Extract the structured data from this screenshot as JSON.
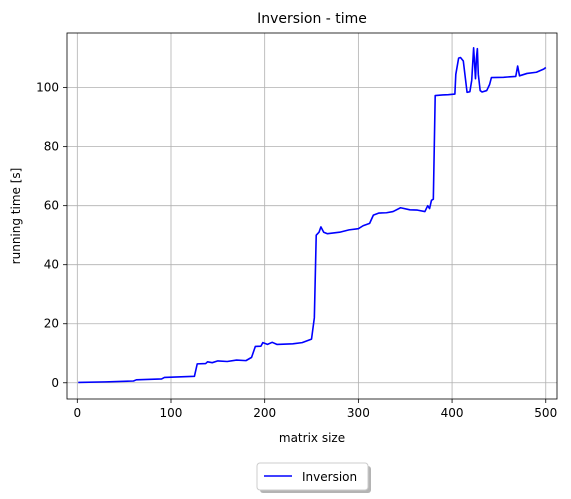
{
  "chart_data": {
    "type": "line",
    "title": "Inversion - time",
    "xlabel": "matrix size",
    "ylabel": "running time [s]",
    "xlim": [
      -11,
      512
    ],
    "ylim": [
      -5.5,
      118.5
    ],
    "xticks": [
      0,
      100,
      200,
      300,
      400,
      500
    ],
    "yticks": [
      0,
      20,
      40,
      60,
      80,
      100
    ],
    "grid": true,
    "legend": {
      "placement": "bottom-center, below axes",
      "entries": [
        "Inversion"
      ]
    },
    "series": [
      {
        "name": "Inversion",
        "color": "#0000ff",
        "points": [
          [
            1,
            0.1
          ],
          [
            30,
            0.3
          ],
          [
            60,
            0.6
          ],
          [
            63,
            1.0
          ],
          [
            90,
            1.3
          ],
          [
            93,
            1.8
          ],
          [
            125,
            2.2
          ],
          [
            128,
            6.4
          ],
          [
            137,
            6.5
          ],
          [
            139,
            7.1
          ],
          [
            144,
            6.8
          ],
          [
            150,
            7.4
          ],
          [
            160,
            7.2
          ],
          [
            170,
            7.7
          ],
          [
            180,
            7.5
          ],
          [
            186,
            8.6
          ],
          [
            190,
            12.3
          ],
          [
            196,
            12.4
          ],
          [
            198,
            13.6
          ],
          [
            203,
            13.0
          ],
          [
            208,
            13.7
          ],
          [
            213,
            13.0
          ],
          [
            230,
            13.2
          ],
          [
            240,
            13.6
          ],
          [
            250,
            14.8
          ],
          [
            253,
            22.0
          ],
          [
            255,
            50.0
          ],
          [
            258,
            51.0
          ],
          [
            260,
            52.8
          ],
          [
            263,
            51.0
          ],
          [
            267,
            50.5
          ],
          [
            280,
            51.0
          ],
          [
            290,
            51.8
          ],
          [
            300,
            52.2
          ],
          [
            305,
            53.2
          ],
          [
            312,
            54.0
          ],
          [
            316,
            56.8
          ],
          [
            322,
            57.5
          ],
          [
            330,
            57.6
          ],
          [
            337,
            58.0
          ],
          [
            345,
            59.3
          ],
          [
            355,
            58.6
          ],
          [
            363,
            58.5
          ],
          [
            371,
            58.0
          ],
          [
            374,
            60.0
          ],
          [
            376,
            59.0
          ],
          [
            378,
            61.8
          ],
          [
            380,
            62.2
          ],
          [
            382,
            97.3
          ],
          [
            390,
            97.5
          ],
          [
            396,
            97.6
          ],
          [
            403,
            97.8
          ],
          [
            404,
            104.5
          ],
          [
            407,
            110.0
          ],
          [
            409,
            110.2
          ],
          [
            412,
            109.0
          ],
          [
            416,
            98.4
          ],
          [
            419,
            98.6
          ],
          [
            421,
            102.5
          ],
          [
            423,
            113.5
          ],
          [
            425,
            103.0
          ],
          [
            426,
            110.0
          ],
          [
            427,
            113.2
          ],
          [
            428,
            104.5
          ],
          [
            430,
            99.0
          ],
          [
            432,
            98.5
          ],
          [
            437,
            99.0
          ],
          [
            440,
            101.0
          ],
          [
            442,
            103.4
          ],
          [
            455,
            103.5
          ],
          [
            468,
            103.8
          ],
          [
            470,
            107.3
          ],
          [
            472,
            104.0
          ],
          [
            480,
            104.8
          ],
          [
            490,
            105.2
          ],
          [
            498,
            106.3
          ],
          [
            500,
            106.8
          ]
        ]
      }
    ]
  }
}
